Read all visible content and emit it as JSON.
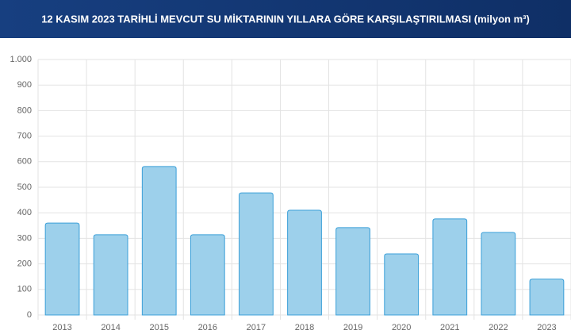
{
  "chart_data": {
    "type": "bar",
    "title": "12 KASIM 2023 TARİHLİ MEVCUT SU MİKTARININ YILLARA GÖRE KARŞILAŞTIRILMASI (milyon m³)",
    "categories": [
      "2013",
      "2014",
      "2015",
      "2016",
      "2017",
      "2018",
      "2019",
      "2020",
      "2021",
      "2022",
      "2023"
    ],
    "values": [
      360,
      314,
      581,
      314,
      478,
      410,
      342,
      239,
      376,
      323,
      140
    ],
    "color": "#9dd0eb",
    "border_color": "#3a9fd8",
    "ylim": [
      0,
      1000
    ],
    "yticks": [
      0,
      100,
      200,
      300,
      400,
      500,
      600,
      700,
      800,
      900,
      {
        "value": 1000,
        "label": "1.000"
      }
    ],
    "grid": true
  }
}
